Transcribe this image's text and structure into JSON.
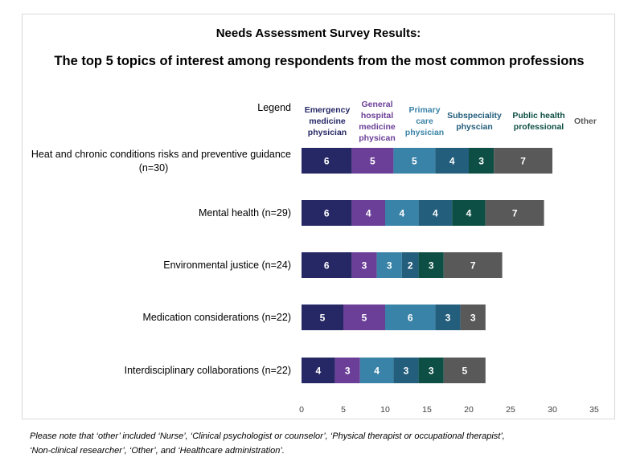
{
  "chart_data": {
    "type": "bar",
    "orientation": "horizontal",
    "stacked": true,
    "title": "Needs Assessment Survey Results:",
    "subtitle": "The top 5 topics of interest among respondents from the most common professions",
    "legend_label": "Legend",
    "legend_placement": "top",
    "categories": [
      [
        "Heat and chronic conditions risks and preventive guidance",
        "(n=30)"
      ],
      [
        "Mental health (n=29)"
      ],
      [
        "Environmental justice (n=24)"
      ],
      [
        "Medication considerations (n=22)"
      ],
      [
        "Interdisciplinary collaborations (n=22)"
      ]
    ],
    "series": [
      {
        "name": [
          "Emergency",
          "medicine",
          "physician"
        ],
        "color": "#262866",
        "values": [
          6,
          6,
          6,
          5,
          4
        ]
      },
      {
        "name": [
          "General",
          "hospital",
          "medicine",
          "physican"
        ],
        "color": "#6b3f98",
        "values": [
          5,
          4,
          3,
          5,
          3
        ]
      },
      {
        "name": [
          "Primary",
          "care",
          "physician"
        ],
        "color": "#3a83a8",
        "values": [
          5,
          4,
          3,
          6,
          4
        ]
      },
      {
        "name": [
          "Subspeciality",
          "physcian"
        ],
        "color": "#235e7c",
        "values": [
          4,
          4,
          2,
          3,
          3
        ]
      },
      {
        "name": [
          "Public health",
          "professional"
        ],
        "color": "#0d4f44",
        "values": [
          3,
          4,
          3,
          0,
          3
        ]
      },
      {
        "name": [
          "Other"
        ],
        "color": "#595959",
        "values": [
          7,
          7,
          7,
          3,
          5
        ]
      }
    ],
    "x_ticks": [
      0,
      5,
      10,
      15,
      20,
      25,
      30,
      35
    ],
    "xlim": [
      0,
      35
    ],
    "grid": false
  },
  "footnote": [
    "Please note that ‘other’ included ‘Nurse’, ‘Clinical psychologist or counselor’, ‘Physical therapist or occupational therapist’,",
    "‘Non-clinical researcher’, ‘Other’, and ‘Healthcare administration’."
  ]
}
